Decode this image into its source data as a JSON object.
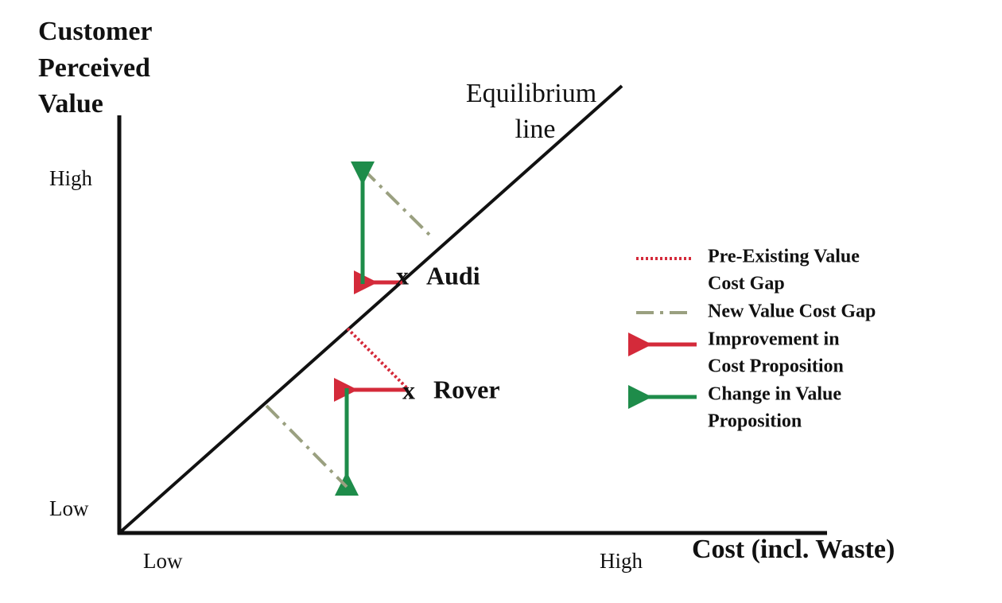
{
  "y_axis": {
    "title_lines": [
      "Customer",
      "Perceived",
      "Value"
    ],
    "high": "High",
    "low": "Low"
  },
  "x_axis": {
    "title": "Cost (incl. Waste)",
    "low": "Low",
    "high": "High"
  },
  "equilibrium_label": [
    "Equilibrium",
    "line"
  ],
  "points": [
    {
      "marker": "x",
      "label": "Audi"
    },
    {
      "marker": "x",
      "label": "Rover"
    }
  ],
  "legend": [
    {
      "lines": [
        "Pre-Existing Value",
        "Cost Gap"
      ]
    },
    {
      "lines": [
        "New Value Cost Gap"
      ]
    },
    {
      "lines": [
        "Improvement in",
        "Cost Proposition"
      ]
    },
    {
      "lines": [
        "Change in Value",
        "Proposition"
      ]
    }
  ]
}
